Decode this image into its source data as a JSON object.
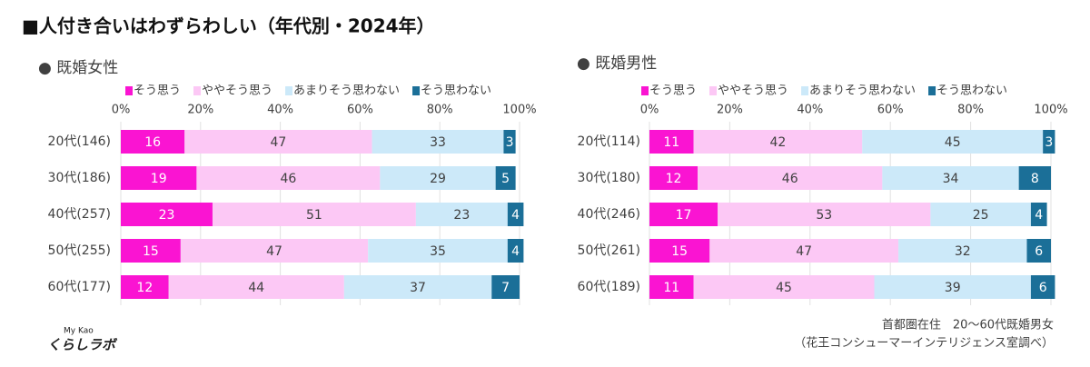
{
  "title": "■人付き合いはわずらわしい（年代別・2024年）",
  "footnote": [
    "首都圏在住　20～60代既婚男女",
    "（花王コンシューマーインテリジェンス室調べ）"
  ],
  "logo": [
    "My Kao",
    "くらしラボ"
  ],
  "chart_data": [
    {
      "type": "bar",
      "orientation": "horizontal",
      "stacked": true,
      "subtitle": "● 既婚女性",
      "categories": [
        "20代(146)",
        "30代(186)",
        "40代(257)",
        "50代(255)",
        "60代(177)"
      ],
      "series": [
        {
          "name": "そう思う",
          "color": "#fa14d2",
          "values": [
            16,
            19,
            23,
            15,
            12
          ]
        },
        {
          "name": "ややそう思う",
          "color": "#fcc8f5",
          "values": [
            47,
            46,
            51,
            47,
            44
          ]
        },
        {
          "name": "あまりそう思わない",
          "color": "#cce9f9",
          "values": [
            33,
            29,
            23,
            35,
            37
          ]
        },
        {
          "name": "そう思わない",
          "color": "#1b6f98",
          "values": [
            3,
            5,
            4,
            4,
            7
          ]
        }
      ],
      "xlim": [
        0,
        100
      ],
      "xticks": [
        {
          "value": 0,
          "label": "0%"
        },
        {
          "value": 20,
          "label": "20%"
        },
        {
          "value": 40,
          "label": "40%"
        },
        {
          "value": 60,
          "label": "60%"
        },
        {
          "value": 80,
          "label": "80%"
        },
        {
          "value": 100,
          "label": "100%"
        }
      ],
      "grid": true
    },
    {
      "type": "bar",
      "orientation": "horizontal",
      "stacked": true,
      "subtitle": "● 既婚男性",
      "categories": [
        "20代(114)",
        "30代(180)",
        "40代(246)",
        "50代(261)",
        "60代(189)"
      ],
      "series": [
        {
          "name": "そう思う",
          "color": "#fa14d2",
          "values": [
            11,
            12,
            17,
            15,
            11
          ]
        },
        {
          "name": "ややそう思う",
          "color": "#fcc8f5",
          "values": [
            42,
            46,
            53,
            47,
            45
          ]
        },
        {
          "name": "あまりそう思わない",
          "color": "#cce9f9",
          "values": [
            45,
            34,
            25,
            32,
            39
          ]
        },
        {
          "name": "そう思わない",
          "color": "#1b6f98",
          "values": [
            3,
            8,
            4,
            6,
            6
          ]
        }
      ],
      "xlim": [
        0,
        100
      ],
      "xticks": [
        {
          "value": 0,
          "label": "0%"
        },
        {
          "value": 20,
          "label": "20%"
        },
        {
          "value": 40,
          "label": "40%"
        },
        {
          "value": 60,
          "label": "60%"
        },
        {
          "value": 80,
          "label": "80%"
        },
        {
          "value": 100,
          "label": "100%"
        }
      ],
      "grid": true
    }
  ]
}
